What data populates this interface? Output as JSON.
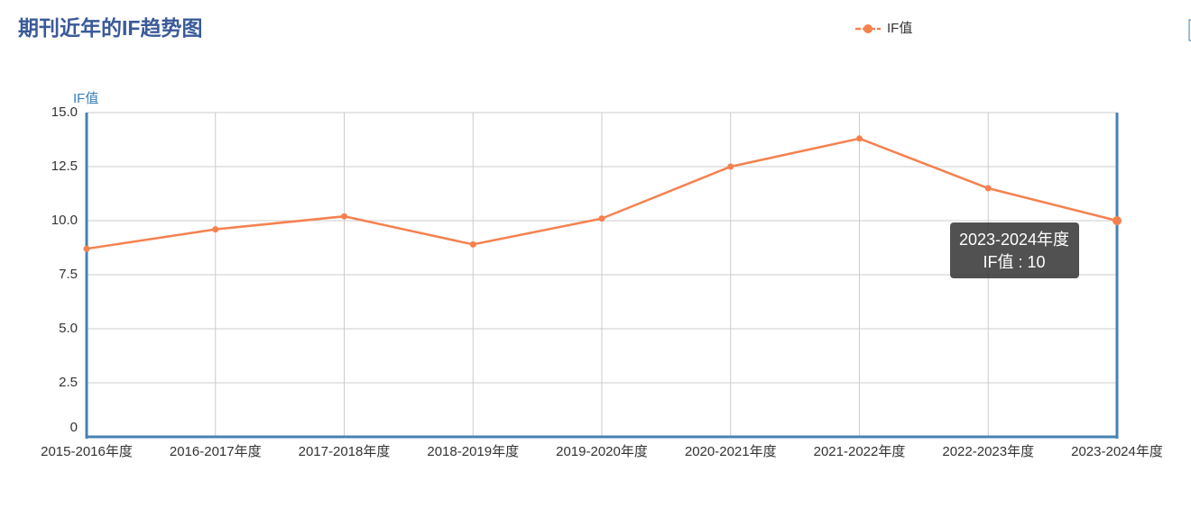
{
  "chart_data": {
    "type": "line",
    "title": "期刊近年的IF趋势图",
    "y_axis_label": "IF值",
    "categories": [
      "2015-2016年度",
      "2016-2017年度",
      "2017-2018年度",
      "2018-2019年度",
      "2019-2020年度",
      "2020-2021年度",
      "2021-2022年度",
      "2022-2023年度",
      "2023-2024年度"
    ],
    "series": [
      {
        "name": "IF值",
        "color": "#f5814f",
        "values": [
          8.7,
          9.6,
          10.2,
          8.9,
          10.1,
          12.5,
          13.8,
          11.5,
          10
        ]
      }
    ],
    "ylim": [
      0,
      15
    ],
    "yticks": [
      0,
      2.5,
      {
        "value": 5,
        "label": "5.0"
      },
      7.5,
      {
        "value": 10,
        "label": "10.0"
      },
      12.5,
      {
        "value": 15,
        "label": "15.0"
      }
    ],
    "grid": true,
    "tooltip": {
      "title": "2023-2024年度",
      "text": "IF值 : 10"
    }
  }
}
